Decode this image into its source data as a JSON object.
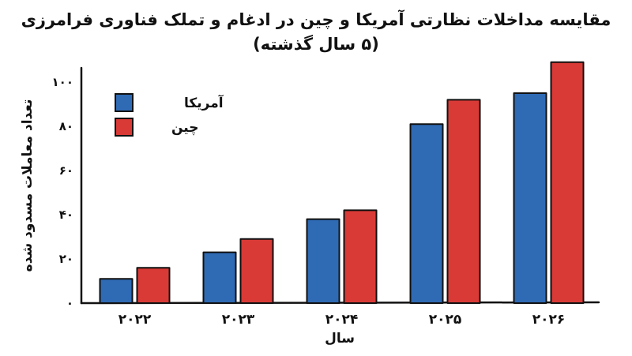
{
  "chart_data": {
    "type": "bar",
    "title": "مقایسه مداخلات نظارتی آمریکا و چین در ادغام و تملک فناوری فرامرزی",
    "subtitle": "(۵ سال گذشته)",
    "xlabel": "سال",
    "ylabel": "تعداد معاملات مسدود شده",
    "categories": [
      "۲۰۲۲",
      "۲۰۲۳",
      "۲۰۲۴",
      "۲۰۲۵",
      "۲۰۲۶"
    ],
    "ylim": [
      0,
      100
    ],
    "yticks": [
      0,
      20,
      40,
      60,
      80,
      100
    ],
    "ytick_labels": [
      "۰",
      "۲۰",
      "۴۰",
      "۶۰",
      "۸۰",
      "۱۰۰"
    ],
    "series": [
      {
        "name": "آمریکا",
        "color": "#2f6ab4",
        "values": [
          11,
          23,
          38,
          81,
          95
        ]
      },
      {
        "name": "چین",
        "color": "#d93a36",
        "values": [
          16,
          29,
          42,
          92,
          109
        ]
      }
    ],
    "legend_position": "top-left",
    "grid": false
  }
}
